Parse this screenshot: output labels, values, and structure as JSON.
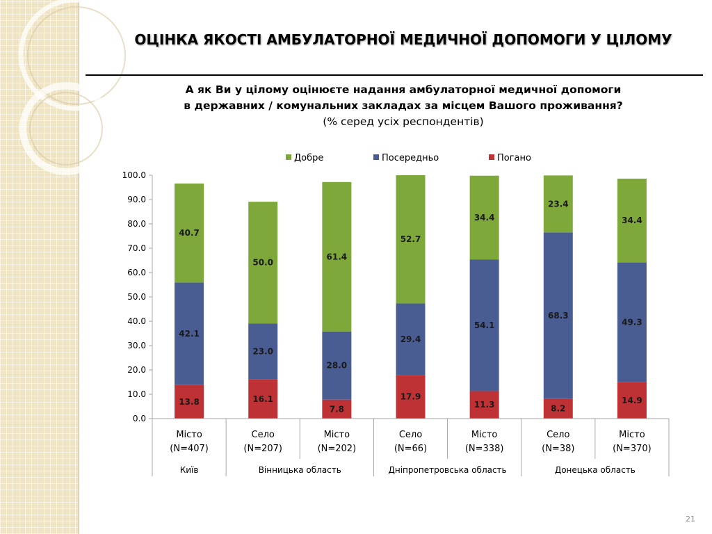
{
  "slide": {
    "title": "ОЦІНКА ЯКОСТІ АМБУЛАТОРНОЇ МЕДИЧНОЇ ДОПОМОГИ У ЦІЛОМУ",
    "question_line1": "А як Ви у цілому оцінюєте надання амбулаторної медичної допомоги",
    "question_line2": "в державних / комунальних закладах за місцем Вашого проживання?",
    "question_note": "(% серед усіх респондентів)",
    "page_number": "21"
  },
  "chart_data": {
    "type": "bar",
    "stacked": true,
    "ylim": [
      0,
      100
    ],
    "yticks": [
      "0.0",
      "10.0",
      "20.0",
      "30.0",
      "40.0",
      "50.0",
      "60.0",
      "70.0",
      "80.0",
      "90.0",
      "100.0"
    ],
    "legend_position": "top",
    "categories": [
      {
        "label": "Місто",
        "n": "(N=407)"
      },
      {
        "label": "Село",
        "n": "(N=207)"
      },
      {
        "label": "Місто",
        "n": "(N=202)"
      },
      {
        "label": "Село",
        "n": "(N=66)"
      },
      {
        "label": "Місто",
        "n": "(N=338)"
      },
      {
        "label": "Село",
        "n": "(N=38)"
      },
      {
        "label": "Місто",
        "n": "(N=370)"
      }
    ],
    "groups": [
      {
        "label": "Київ",
        "span": 1
      },
      {
        "label": "Вінницька область",
        "span": 2
      },
      {
        "label": "Дніпропетровська область",
        "span": 2
      },
      {
        "label": "Донецька область",
        "span": 2
      }
    ],
    "series": [
      {
        "name": "Погано",
        "color": "#be3235",
        "values": [
          13.8,
          16.1,
          7.8,
          17.9,
          11.3,
          8.2,
          14.9
        ],
        "labels": [
          "13.8",
          "16.1",
          "7.8",
          "17.9",
          "11.3",
          "8.2",
          "14.9"
        ]
      },
      {
        "name": "Посередньо",
        "color": "#4a5d93",
        "values": [
          42.1,
          23.0,
          28.0,
          29.4,
          54.1,
          68.3,
          49.3
        ],
        "labels": [
          "42.1",
          "23.0",
          "28.0",
          "29.4",
          "54.1",
          "68.3",
          "49.3"
        ]
      },
      {
        "name": "Добре",
        "color": "#7ea93a",
        "values": [
          40.7,
          50.0,
          61.4,
          52.7,
          34.4,
          23.4,
          34.4
        ],
        "labels": [
          "40.7",
          "50.0",
          "61.4",
          "52.7",
          "34.4",
          "23.4",
          "34.4"
        ]
      }
    ],
    "legend_order": [
      "Добре",
      "Посередньо",
      "Погано"
    ]
  }
}
